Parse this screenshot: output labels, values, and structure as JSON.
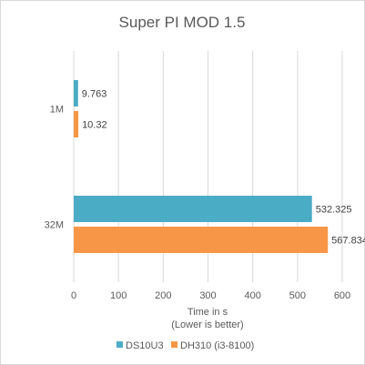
{
  "chart_data": {
    "type": "bar",
    "orientation": "horizontal",
    "title": "Super PI MOD 1.5",
    "xlabel": "Time in s",
    "xlabel_note": "(Lower is better)",
    "categories": [
      "1M",
      "32M"
    ],
    "series": [
      {
        "name": "DS10U3",
        "color": "#4bacc6",
        "values": [
          9.763,
          532.325
        ],
        "labels": [
          "9.763",
          "532.325"
        ]
      },
      {
        "name": "DH310 (i3-8100)",
        "color": "#f79646",
        "values": [
          10.32,
          567.834
        ],
        "labels": [
          "10.32",
          "567.834"
        ]
      }
    ],
    "xlim": [
      0,
      600
    ],
    "xticks": [
      0,
      100,
      200,
      300,
      400,
      500,
      600
    ],
    "grid": true,
    "legend": "bottom"
  }
}
